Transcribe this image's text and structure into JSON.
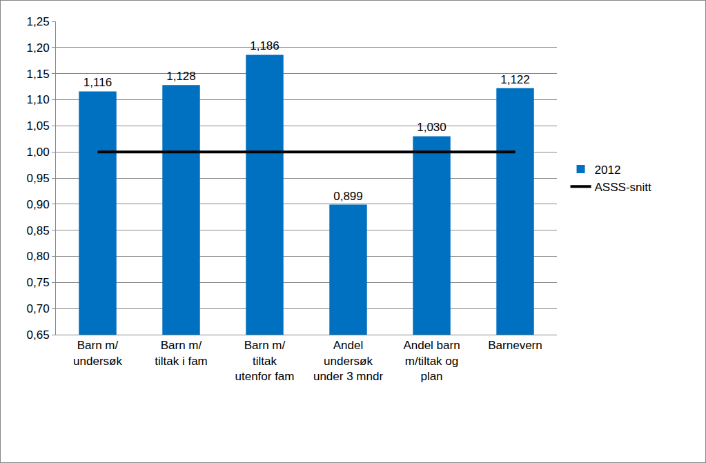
{
  "chart_data": {
    "type": "bar",
    "categories": [
      "Barn m/ undersøk",
      "Barn m/ tiltak i fam",
      "Barn m/ tiltak utenfor fam",
      "Andel undersøk under 3 mndr",
      "Andel barn m/tiltak og plan",
      "Barnevern"
    ],
    "series": [
      {
        "name": "2012",
        "type": "bar",
        "color": "#0070c0",
        "values": [
          1.116,
          1.128,
          1.186,
          0.899,
          1.03,
          1.122
        ],
        "value_labels": [
          "1,116",
          "1,128",
          "1,186",
          "0,899",
          "1,030",
          "1,122"
        ]
      },
      {
        "name": "ASSS-snitt",
        "type": "line",
        "color": "#000000",
        "values": [
          1.0,
          1.0,
          1.0,
          1.0,
          1.0,
          1.0
        ]
      }
    ],
    "ylim": [
      0.65,
      1.25
    ],
    "yticks": [
      {
        "value": 0.65,
        "label": "0,65"
      },
      {
        "value": 0.7,
        "label": "0,70"
      },
      {
        "value": 0.75,
        "label": "0,75"
      },
      {
        "value": 0.8,
        "label": "0,80"
      },
      {
        "value": 0.85,
        "label": "0,85"
      },
      {
        "value": 0.9,
        "label": "0,90"
      },
      {
        "value": 0.95,
        "label": "0,95"
      },
      {
        "value": 1.0,
        "label": "1,00"
      },
      {
        "value": 1.05,
        "label": "1,05"
      },
      {
        "value": 1.1,
        "label": "1,10"
      },
      {
        "value": 1.15,
        "label": "1,15"
      },
      {
        "value": 1.2,
        "label": "1,20"
      },
      {
        "value": 1.25,
        "label": "1,25"
      }
    ],
    "grid": true,
    "legend": "right",
    "data_labels": true
  }
}
